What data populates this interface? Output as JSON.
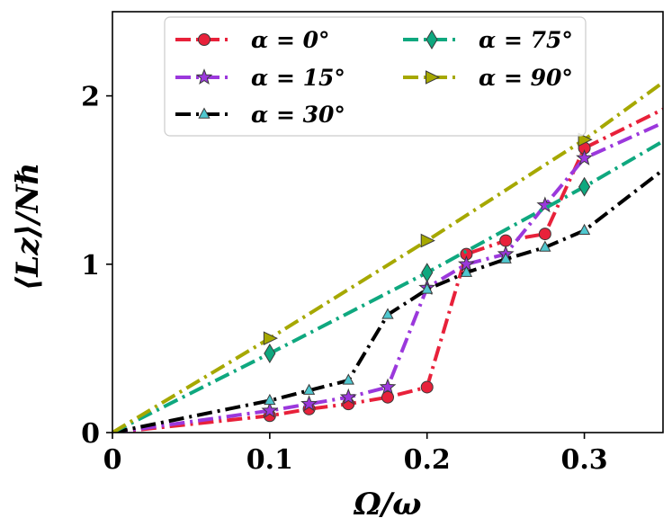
{
  "chart_data": {
    "type": "line",
    "title": "",
    "xlabel": "Ω/ω",
    "ylabel": "⟨Lz⟩/Nℏ",
    "xlim": [
      0,
      0.35
    ],
    "ylim": [
      0,
      2.5
    ],
    "xticks": [
      0,
      0.1,
      0.2,
      0.3
    ],
    "xtick_labels": [
      "0",
      "0.1",
      "0.2",
      "0.3"
    ],
    "yticks": [
      0,
      1,
      2
    ],
    "ytick_labels": [
      "0",
      "1",
      "2"
    ],
    "grid": false,
    "legend_position": "top-center",
    "series": [
      {
        "name": "α = 0°",
        "color": "#e8213a",
        "marker": "circle",
        "linestyle": "dash-dot",
        "x": [
          0,
          0.1,
          0.125,
          0.15,
          0.175,
          0.2,
          0.225,
          0.25,
          0.275,
          0.3,
          0.35
        ],
        "y": [
          0,
          0.1,
          0.14,
          0.17,
          0.21,
          0.27,
          1.06,
          1.14,
          1.18,
          1.69,
          1.92
        ],
        "marker_x": [
          0.1,
          0.125,
          0.15,
          0.175,
          0.2,
          0.225,
          0.25,
          0.275,
          0.3
        ]
      },
      {
        "name": "α = 15°",
        "color": "#9b38dc",
        "marker": "star",
        "linestyle": "dash-dot",
        "x": [
          0,
          0.1,
          0.125,
          0.15,
          0.175,
          0.2,
          0.225,
          0.25,
          0.275,
          0.3,
          0.35
        ],
        "y": [
          0,
          0.13,
          0.17,
          0.21,
          0.27,
          0.86,
          1.0,
          1.06,
          1.35,
          1.63,
          1.84
        ],
        "marker_x": [
          0.1,
          0.125,
          0.15,
          0.175,
          0.2,
          0.225,
          0.25,
          0.275,
          0.3
        ]
      },
      {
        "name": "α = 30°",
        "color": "#000000",
        "marker": "triangle",
        "marker_color": "#4fc7cf",
        "linestyle": "dash-dot",
        "x": [
          0,
          0.1,
          0.125,
          0.15,
          0.175,
          0.2,
          0.225,
          0.25,
          0.275,
          0.3,
          0.35
        ],
        "y": [
          0,
          0.19,
          0.25,
          0.31,
          0.7,
          0.85,
          0.95,
          1.03,
          1.1,
          1.2,
          1.56
        ],
        "marker_x": [
          0.1,
          0.125,
          0.15,
          0.175,
          0.2,
          0.225,
          0.25,
          0.275,
          0.3
        ]
      },
      {
        "name": "α = 75°",
        "color": "#0fa87f",
        "marker": "diamond",
        "linestyle": "dash-dot",
        "x": [
          0,
          0.1,
          0.2,
          0.3,
          0.35
        ],
        "y": [
          0,
          0.47,
          0.95,
          1.46,
          1.73
        ],
        "marker_x": [
          0.1,
          0.2,
          0.3
        ]
      },
      {
        "name": "α = 90°",
        "color": "#a6a800",
        "marker": "triangle-right",
        "linestyle": "dash-dot",
        "x": [
          0,
          0.1,
          0.2,
          0.3,
          0.35
        ],
        "y": [
          0,
          0.56,
          1.14,
          1.74,
          2.08
        ],
        "marker_x": [
          0.1,
          0.2,
          0.3
        ]
      }
    ]
  }
}
